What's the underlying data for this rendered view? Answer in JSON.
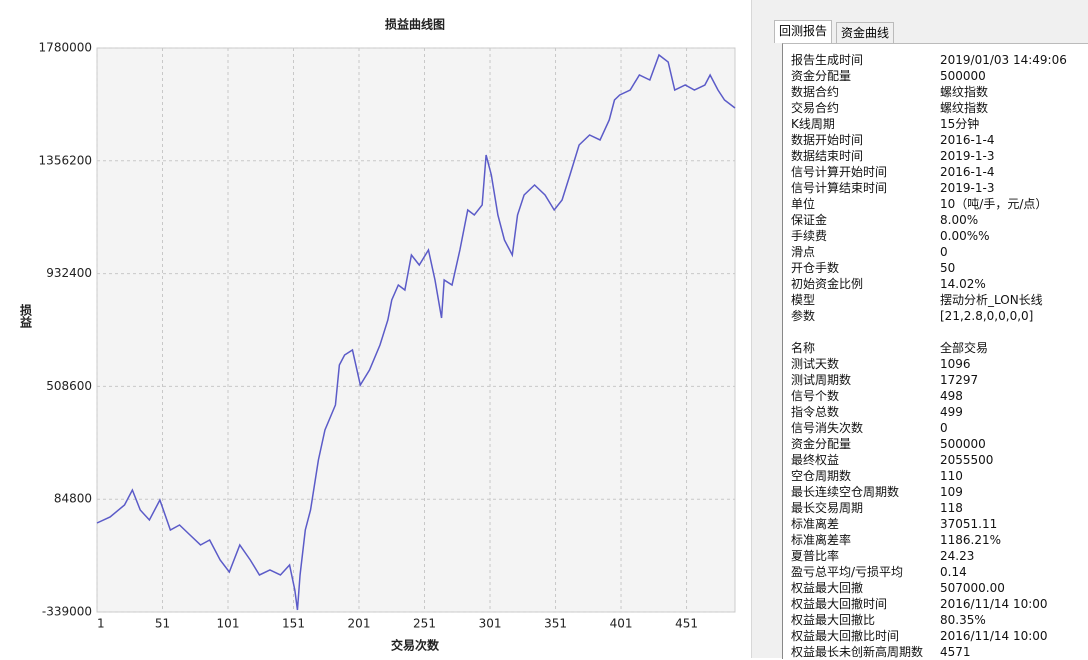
{
  "chart_data": {
    "type": "line",
    "title": "损益曲线图",
    "y_label": "损益",
    "x_label": "交易次数",
    "color": "#5b5bc8",
    "grid": true,
    "xlim": [
      1,
      488
    ],
    "xticks": [
      1,
      51,
      101,
      151,
      201,
      251,
      301,
      351,
      401,
      451
    ],
    "ylim": [
      -339000,
      1780000
    ],
    "yticks": [
      1780000,
      1356200,
      932400,
      508600,
      84800,
      -339000
    ],
    "x": [
      1,
      11,
      22,
      28,
      34,
      41,
      49,
      57,
      64,
      72,
      80,
      87,
      95,
      102,
      110,
      118,
      125,
      133,
      141,
      148,
      152,
      154,
      156,
      160,
      164,
      170,
      175,
      183,
      186,
      190,
      196,
      202,
      209,
      217,
      223,
      226,
      231,
      236,
      241,
      247,
      254,
      259,
      264,
      266,
      272,
      278,
      284,
      289,
      295,
      298,
      302,
      307,
      312,
      318,
      322,
      327,
      335,
      343,
      350,
      356,
      362,
      369,
      377,
      385,
      392,
      396,
      400,
      408,
      415,
      423,
      430,
      437,
      442,
      450,
      457,
      465,
      469,
      475,
      480,
      488
    ],
    "values": [
      -4600,
      18000,
      63100,
      119400,
      44300,
      6700,
      81800,
      -30900,
      -12100,
      -49700,
      -87200,
      -68400,
      -143600,
      -188700,
      -87200,
      -143600,
      -199900,
      -181200,
      -199900,
      -162400,
      -256300,
      -331400,
      -199900,
      -30900,
      44300,
      232100,
      344800,
      438800,
      589000,
      626600,
      645400,
      513900,
      570200,
      664200,
      758100,
      833200,
      889600,
      870800,
      1002300,
      964700,
      1021100,
      908400,
      765600,
      908400,
      889600,
      1021100,
      1171400,
      1152600,
      1190200,
      1378000,
      1302900,
      1152600,
      1058700,
      1002300,
      1152600,
      1227700,
      1265300,
      1227700,
      1171400,
      1208900,
      1302900,
      1415600,
      1453100,
      1434400,
      1509500,
      1584600,
      1603400,
      1622200,
      1678600,
      1659800,
      1753700,
      1727400,
      1622200,
      1641000,
      1622200,
      1641000,
      1678600,
      1622200,
      1584600,
      1554600
    ]
  },
  "tabs": [
    "回测报告",
    "资金曲线"
  ],
  "report": {
    "groups": [
      {
        "rows": [
          [
            "报告生成时间",
            "2019/01/03 14:49:06"
          ],
          [
            "资金分配量",
            "500000"
          ],
          [
            "数据合约",
            "螺纹指数"
          ],
          [
            "交易合约",
            "螺纹指数"
          ],
          [
            "K线周期",
            "15分钟"
          ],
          [
            "数据开始时间",
            "2016-1-4"
          ],
          [
            "数据结束时间",
            "2019-1-3"
          ],
          [
            "信号计算开始时间",
            "2016-1-4"
          ],
          [
            "信号计算结束时间",
            "2019-1-3"
          ],
          [
            "单位",
            "10（吨/手，元/点）"
          ],
          [
            "保证金",
            "8.00%"
          ],
          [
            "手续费",
            "0.00%%"
          ],
          [
            "滑点",
            "0"
          ],
          [
            "开仓手数",
            "50"
          ],
          [
            "初始资金比例",
            "14.02%"
          ],
          [
            "模型",
            "摆动分析_LON长线"
          ],
          [
            "参数",
            "[21,2.8,0,0,0,0]"
          ]
        ]
      },
      {
        "rows": [
          [
            "名称",
            "全部交易"
          ],
          [
            "测试天数",
            "1096"
          ],
          [
            "测试周期数",
            "17297"
          ],
          [
            "信号个数",
            "498"
          ],
          [
            "指令总数",
            "499"
          ],
          [
            "信号消失次数",
            "0"
          ],
          [
            "资金分配量",
            "500000"
          ],
          [
            "最终权益",
            "2055500"
          ],
          [
            "空仓周期数",
            "110"
          ],
          [
            "最长连续空仓周期数",
            "109"
          ],
          [
            "最长交易周期",
            "118"
          ],
          [
            "标准离差",
            "37051.11"
          ],
          [
            "标准离差率",
            "1186.21%"
          ],
          [
            "夏普比率",
            "24.23"
          ],
          [
            "盈亏总平均/亏损平均",
            "0.14"
          ],
          [
            "权益最大回撤",
            "507000.00"
          ],
          [
            "权益最大回撤时间",
            "2016/11/14 10:00"
          ],
          [
            "权益最大回撤比",
            "80.35%"
          ],
          [
            "权益最大回撤比时间",
            "2016/11/14 10:00"
          ],
          [
            "权益最长未创新高周期数",
            "4571"
          ]
        ]
      }
    ]
  }
}
